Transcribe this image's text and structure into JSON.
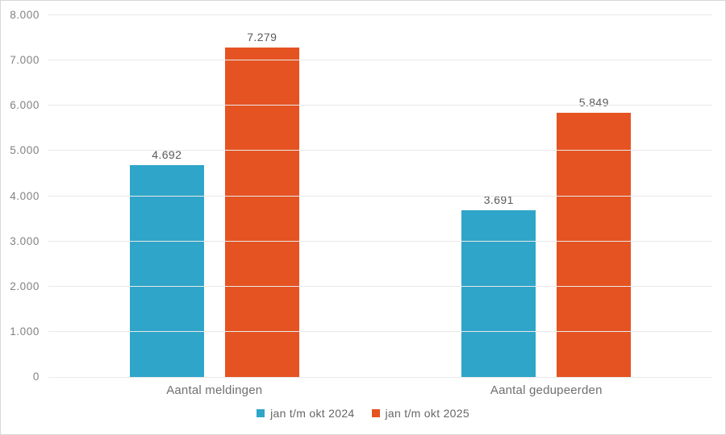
{
  "chart_data": {
    "type": "bar",
    "title": "",
    "xlabel": "",
    "ylabel": "",
    "categories": [
      "Aantal meldingen",
      "Aantal gedupeerden"
    ],
    "series": [
      {
        "name": "jan t/m okt 2024",
        "color": "#2fa5c9",
        "values": [
          4692,
          3691
        ],
        "value_labels": [
          "4.692",
          "3.691"
        ]
      },
      {
        "name": "jan t/m okt 2025",
        "color": "#e55322",
        "values": [
          7279,
          5849
        ],
        "value_labels": [
          "7.279",
          "5.849"
        ]
      }
    ],
    "ylim": [
      0,
      8000
    ],
    "y_ticks": [
      0,
      1000,
      2000,
      3000,
      4000,
      5000,
      6000,
      7000,
      8000
    ],
    "y_tick_labels": [
      "0",
      "1.000",
      "2.000",
      "3.000",
      "4.000",
      "5.000",
      "6.000",
      "7.000",
      "8.000"
    ],
    "grid": true,
    "legend_position": "bottom-center",
    "colors": {
      "gridline": "#e9e9e9",
      "frame_border": "#d8d8d8",
      "axis_text": "#828282",
      "value_label_text": "#595959",
      "category_text": "#6f6f6f",
      "legend_text": "#666666",
      "background": "#ffffff"
    }
  }
}
